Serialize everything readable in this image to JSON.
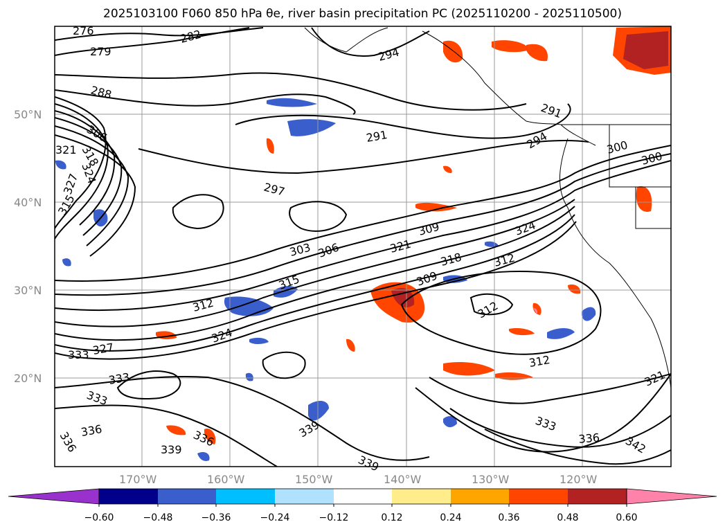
{
  "title": "2025103100 F060 850 hPa θe, river basin precipitation PC (2025110200 - 2025110500)",
  "lat_labels": [
    "50°N",
    "40°N",
    "30°N",
    "20°N"
  ],
  "lon_labels": [
    "170°W",
    "160°W",
    "150°W",
    "140°W",
    "130°W",
    "120°W"
  ],
  "contour_labels": [
    "276",
    "279",
    "282",
    "288",
    "294",
    "291",
    "291",
    "294",
    "300",
    "300",
    "306",
    "318",
    "321",
    "324",
    "327",
    "315",
    "297",
    "303",
    "306",
    "309",
    "321",
    "318",
    "312",
    "324",
    "315",
    "312",
    "309",
    "312",
    "324",
    "327",
    "333",
    "333",
    "333",
    "312",
    "321",
    "336",
    "336",
    "336",
    "339",
    "339",
    "339",
    "333",
    "336",
    "342"
  ],
  "colorbar": {
    "colors": [
      "#9932cc",
      "#00008b",
      "#3a5fcd",
      "#00bfff",
      "#b0e2ff",
      "#ffffff",
      "#ffec8b",
      "#ffa500",
      "#ff4500",
      "#b22222",
      "#ff82ab"
    ],
    "ticks": [
      "−0.60",
      "−0.48",
      "−0.36",
      "−0.24",
      "−0.12",
      "0.12",
      "0.24",
      "0.36",
      "0.48",
      "0.60"
    ]
  }
}
